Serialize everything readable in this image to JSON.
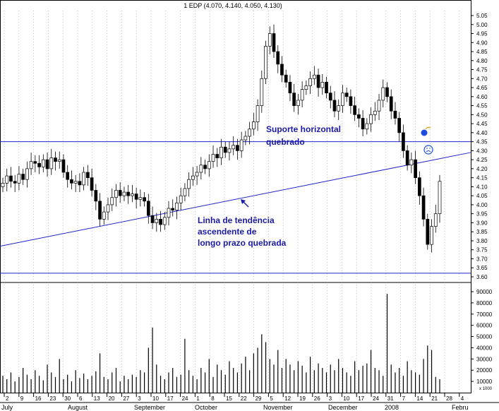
{
  "chart_data": {
    "type": "candlestick",
    "title": "1 EDP (4.070, 4.140, 4.050, 4.130)",
    "price_axis": {
      "min": 3.6,
      "max": 5.05,
      "ticks": [
        "5.05",
        "5.00",
        "4.95",
        "4.90",
        "4.85",
        "4.80",
        "4.75",
        "4.70",
        "4.65",
        "4.60",
        "4.55",
        "4.50",
        "4.45",
        "4.40",
        "4.35",
        "4.30",
        "4.25",
        "4.20",
        "4.15",
        "4.10",
        "4.05",
        "4.00",
        "3.95",
        "3.90",
        "3.85",
        "3.80",
        "3.75",
        "3.70",
        "3.65",
        "3.60"
      ]
    },
    "volume_axis": {
      "min": 0,
      "max": 90000,
      "ticks": [
        "90000",
        "80000",
        "70000",
        "60000",
        "50000",
        "40000",
        "30000",
        "20000",
        "10000"
      ],
      "unit_label": "x 1000"
    },
    "x_day_labels": [
      "2",
      "9",
      "16",
      "23",
      "30",
      "6",
      "13",
      "20",
      "27",
      "3",
      "10",
      "17",
      "24",
      "1",
      "8",
      "15",
      "22",
      "29",
      "5",
      "12",
      "19",
      "26",
      "3",
      "10",
      "17",
      "24",
      "31",
      "7",
      "14",
      "21",
      "28",
      "4"
    ],
    "x_month_labels": [
      "July",
      "August",
      "September",
      "October",
      "November",
      "December",
      "2008",
      "Febru"
    ],
    "annotations": {
      "support": "Suporte horizontal\nquebrado",
      "trend": "Linha de tendência\nascendente de\nlongo prazo quebrada"
    },
    "lines": {
      "support_level": 4.35,
      "bottom_level": 3.62,
      "trend_start": 3.77,
      "trend_end": 4.29
    },
    "closes": [
      4.12,
      4.16,
      4.13,
      4.12,
      4.17,
      4.14,
      4.2,
      4.24,
      4.23,
      4.21,
      4.25,
      4.2,
      4.26,
      4.24,
      4.25,
      4.18,
      4.14,
      4.12,
      4.13,
      4.11,
      4.18,
      4.15,
      4.08,
      4.02,
      3.92,
      3.96,
      4.0,
      4.04,
      4.08,
      4.05,
      4.07,
      4.05,
      4.06,
      4.03,
      4.04,
      4.02,
      3.94,
      3.9,
      3.92,
      3.89,
      3.93,
      3.98,
      3.97,
      4.01,
      4.05,
      4.09,
      4.14,
      4.16,
      4.18,
      4.22,
      4.2,
      4.24,
      4.28,
      4.26,
      4.32,
      4.29,
      4.31,
      4.33,
      4.3,
      4.36,
      4.38,
      4.42,
      4.46,
      4.55,
      4.7,
      4.88,
      4.95,
      4.85,
      4.78,
      4.72,
      4.68,
      4.62,
      4.55,
      4.58,
      4.64,
      4.66,
      4.7,
      4.72,
      4.65,
      4.68,
      4.62,
      4.58,
      4.52,
      4.55,
      4.62,
      4.6,
      4.55,
      4.5,
      4.48,
      4.42,
      4.45,
      4.5,
      4.52,
      4.58,
      4.65,
      4.6,
      4.52,
      4.48,
      4.4,
      4.3,
      4.22,
      4.25,
      4.15,
      4.05,
      3.92,
      3.78,
      3.88,
      3.95,
      4.13
    ],
    "volumes": [
      15000,
      12000,
      18000,
      10000,
      14000,
      22000,
      16000,
      12000,
      20000,
      15000,
      11000,
      25000,
      18000,
      14000,
      30000,
      12000,
      16000,
      10000,
      20000,
      13000,
      17000,
      12000,
      15000,
      19000,
      35000,
      14000,
      12000,
      18000,
      22000,
      10000,
      15000,
      12000,
      16000,
      14000,
      20000,
      18000,
      40000,
      58000,
      25000,
      15000,
      12000,
      18000,
      22000,
      14000,
      16000,
      48000,
      20000,
      15000,
      12000,
      22000,
      18000,
      30000,
      14000,
      25000,
      20000,
      16000,
      28000,
      22000,
      18000,
      26000,
      32000,
      20000,
      35000,
      40000,
      52000,
      45000,
      30000,
      25000,
      38000,
      22000,
      30000,
      25000,
      20000,
      28000,
      24000,
      18000,
      32000,
      20000,
      26000,
      22000,
      18000,
      25000,
      20000,
      30000,
      22000,
      18000,
      15000,
      28000,
      20000,
      24000,
      26000,
      38000,
      22000,
      20000,
      15000,
      88000,
      25000,
      18000,
      22000,
      15000,
      28000,
      20000,
      18000,
      16000,
      30000,
      42000,
      38000,
      14000,
      12000
    ]
  }
}
